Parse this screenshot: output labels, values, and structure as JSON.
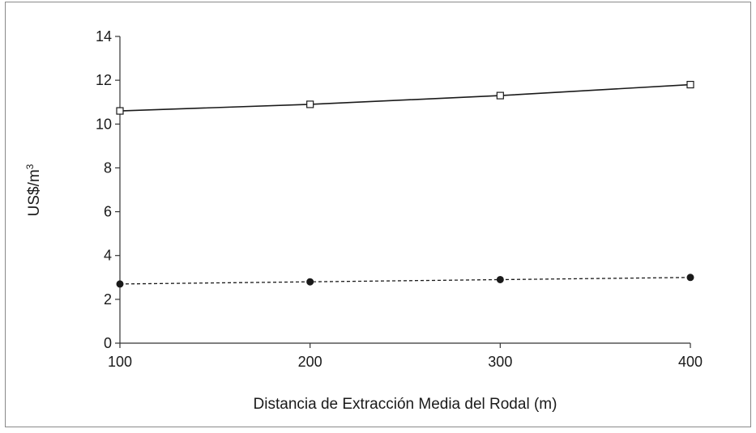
{
  "chart_data": {
    "type": "line",
    "xlabel": "Distancia de Extracción Media del Rodal (m)",
    "ylabel": "US$/m",
    "ylabel_superscript": "3",
    "x": [
      100,
      200,
      300,
      400
    ],
    "xlim": [
      100,
      400
    ],
    "ylim": [
      0,
      14
    ],
    "xticks": [
      "100",
      "200",
      "300",
      "400"
    ],
    "yticks": [
      "0",
      "2",
      "4",
      "6",
      "8",
      "10",
      "12",
      "14"
    ],
    "grid": false,
    "series": [
      {
        "values": [
          10.6,
          10.9,
          11.3,
          11.8
        ],
        "line_style": "solid",
        "marker": "open-square",
        "color": "#1a1a1a"
      },
      {
        "values": [
          2.7,
          2.8,
          2.9,
          3.0
        ],
        "line_style": "dashed",
        "marker": "filled-circle",
        "color": "#1a1a1a"
      }
    ]
  }
}
